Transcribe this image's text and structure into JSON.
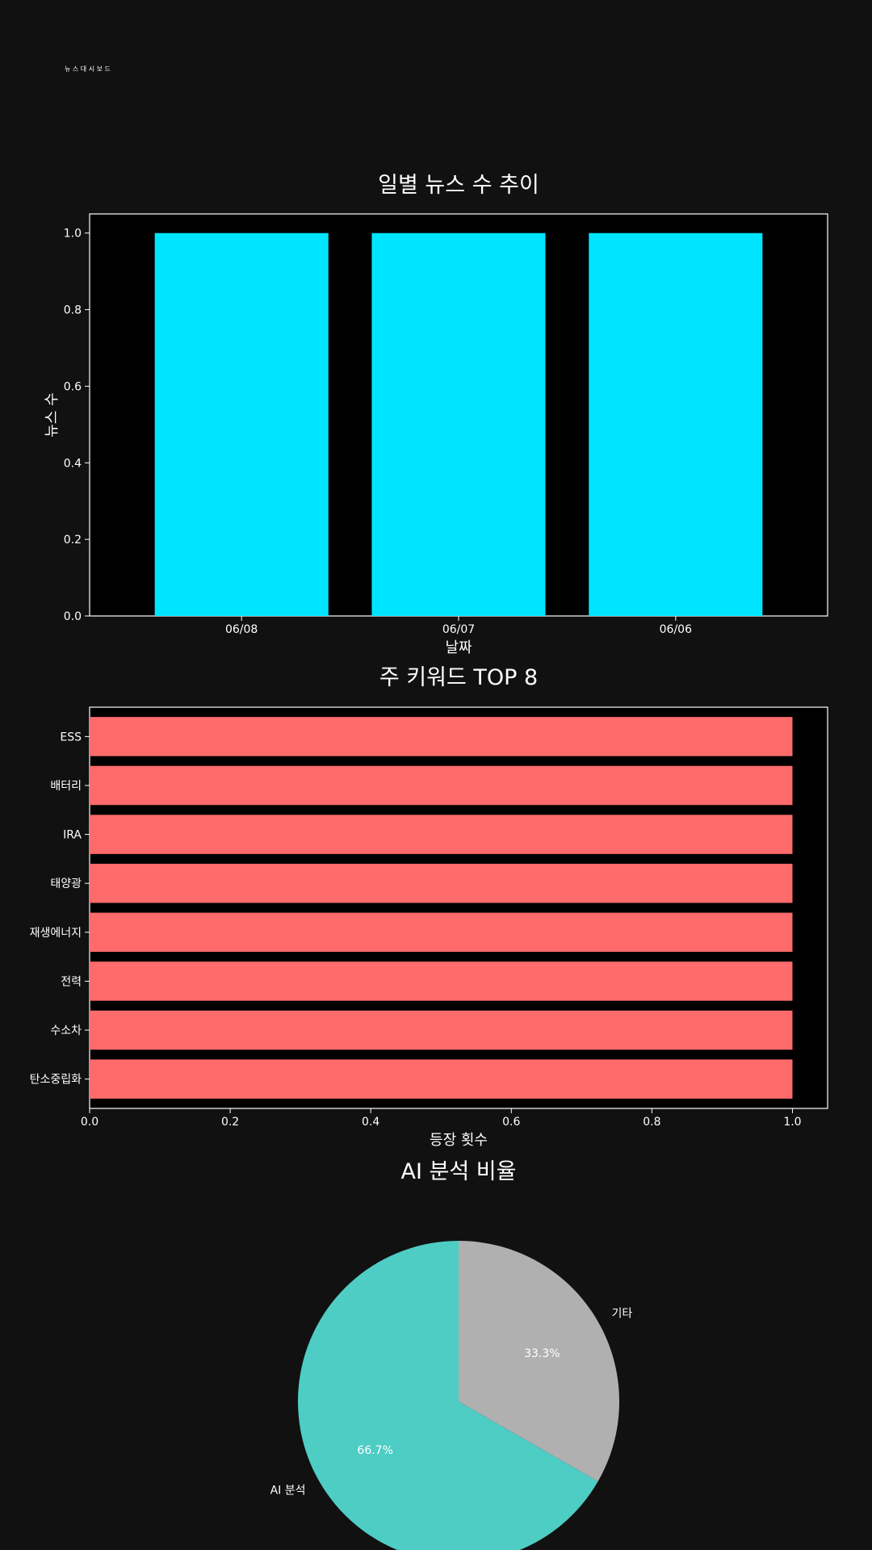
{
  "page_heading": "뉴 스 대 시 보 드",
  "colors": {
    "background": "#111111",
    "plot_background": "#000000",
    "bar1": "#00e5ff",
    "bar2": "#ff6b6b",
    "pie_ai": "#4ecdc4",
    "pie_other": "#b0b0b0",
    "text": "#ffffff"
  },
  "chart_data": [
    {
      "type": "bar",
      "title": "일별 뉴스 수 추이",
      "xlabel": "날짜",
      "ylabel": "뉴스 수",
      "categories": [
        "06/08",
        "06/07",
        "06/06"
      ],
      "values": [
        1,
        1,
        1
      ],
      "ylim": [
        0,
        1.05
      ],
      "yticks": [
        0.0,
        0.2,
        0.4,
        0.6,
        0.8,
        1.0
      ],
      "ytick_labels": [
        "0.0",
        "0.2",
        "0.4",
        "0.6",
        "0.8",
        "1.0"
      ],
      "grid": false
    },
    {
      "type": "bar",
      "orientation": "horizontal",
      "title": "주 키워드 TOP 8",
      "xlabel": "등장 횟수",
      "categories": [
        "ESS",
        "배터리",
        "IRA",
        "태양광",
        "재생에너지",
        "전력",
        "수소차",
        "탄소중립화"
      ],
      "values": [
        1,
        1,
        1,
        1,
        1,
        1,
        1,
        1
      ],
      "xlim": [
        0,
        1.05
      ],
      "xticks": [
        0.0,
        0.2,
        0.4,
        0.6,
        0.8,
        1.0
      ],
      "xtick_labels": [
        "0.0",
        "0.2",
        "0.4",
        "0.6",
        "0.8",
        "1.0"
      ],
      "grid": false
    },
    {
      "type": "pie",
      "title": "AI 분석 비율",
      "labels": [
        "기타",
        "AI 분석"
      ],
      "values": [
        33.3,
        66.7
      ],
      "pct_labels": [
        "33.3%",
        "66.7%"
      ]
    }
  ]
}
